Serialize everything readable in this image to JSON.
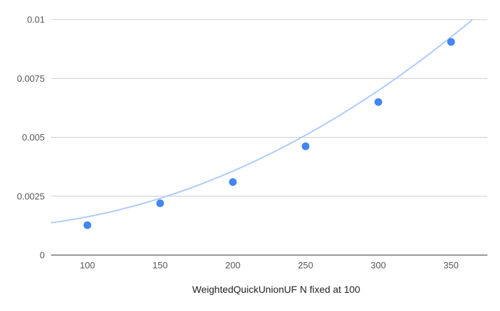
{
  "colors": {
    "point": "#4285F4",
    "trendline": "#AECBFA",
    "grid": "#CCCCCC",
    "axis": "#333333",
    "text": "#555555"
  },
  "chart_data": {
    "type": "scatter",
    "title": "",
    "xlabel": "WeightedQuickUnionUF N fixed at 100",
    "ylabel": "",
    "xlim": [
      75,
      375
    ],
    "ylim": [
      0,
      0.01
    ],
    "x_ticks": [
      100,
      150,
      200,
      250,
      300,
      350
    ],
    "x_tick_labels": [
      "100",
      "150",
      "200",
      "250",
      "300",
      "350"
    ],
    "y_ticks": [
      0,
      0.0025,
      0.005,
      0.0075,
      0.01
    ],
    "y_tick_labels": [
      "0",
      "0.0025",
      "0.005",
      "0.0075",
      "0.01"
    ],
    "grid": true,
    "legend": "none",
    "points": [
      {
        "x": 100,
        "y": 0.00127
      },
      {
        "x": 150,
        "y": 0.0022
      },
      {
        "x": 200,
        "y": 0.0031
      },
      {
        "x": 250,
        "y": 0.00462
      },
      {
        "x": 300,
        "y": 0.0065
      },
      {
        "x": 350,
        "y": 0.00905
      }
    ],
    "trendline": {
      "type": "polynomial",
      "degree": 2,
      "coefficients": [
        0.00117,
        -2.86e-06,
        7.42e-08
      ]
    }
  }
}
